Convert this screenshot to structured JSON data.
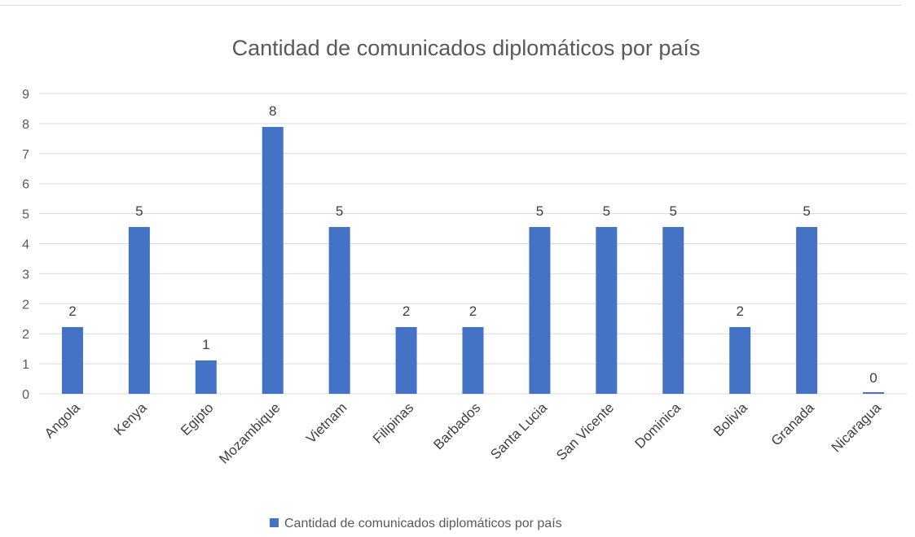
{
  "chart_data": {
    "type": "bar",
    "title": "Cantidad de comunicados diplomáticos por país",
    "xlabel": "",
    "ylabel": "",
    "categories": [
      "Angola",
      "Kenya",
      "Egipto",
      "Mozambique",
      "Vietnam",
      "Filipinas",
      "Barbados",
      "Santa Lucia",
      "San Vicente",
      "Dominica",
      "Bolivia",
      "Granada",
      "Nicaragua"
    ],
    "series": [
      {
        "name": "Cantidad de comunicados diplomáticos por país",
        "values": [
          2,
          5,
          1,
          8,
          5,
          2,
          2,
          5,
          5,
          5,
          2,
          5,
          0
        ],
        "color": "#4472c4"
      }
    ],
    "y_tick_labels": [
      "0",
      "1",
      "2",
      "2",
      "3",
      "4",
      "5",
      "6",
      "7",
      "8",
      "9"
    ],
    "ylim": [
      0,
      9
    ],
    "grid": true,
    "data_labels": true,
    "legend_position": "bottom",
    "colors": {
      "bar": "#4472c4",
      "grid": "#d9d9d9",
      "text": "#595959"
    }
  }
}
